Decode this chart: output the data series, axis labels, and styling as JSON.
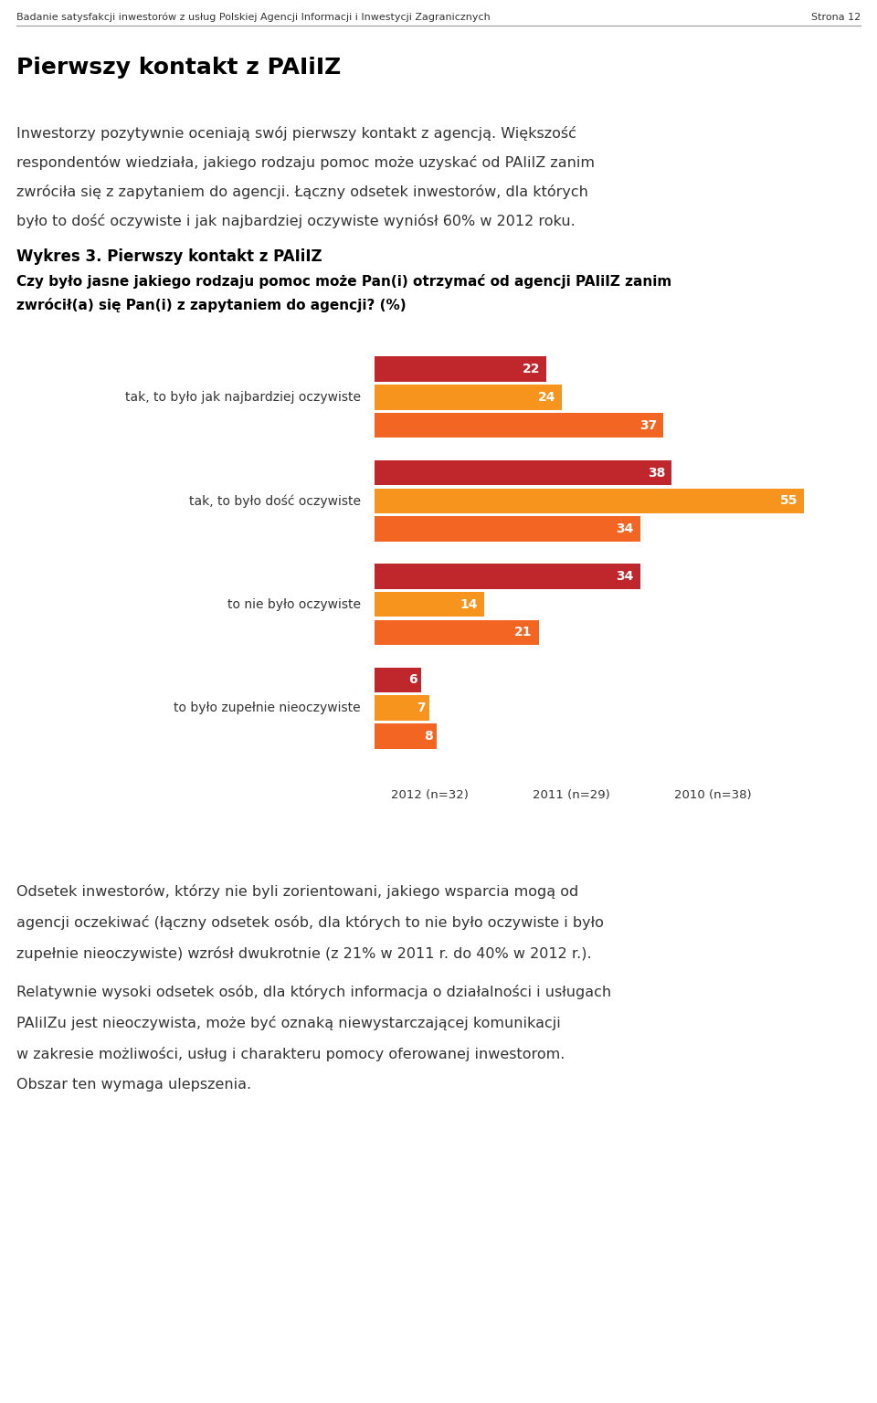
{
  "page_header": "Badanie satysfakcji inwestorów z usług Polskiej Agencji Informacji i Inwestycji Zagranicznych",
  "page_number": "Strona 12",
  "section_title": "Pierwszy kontakt z PAIiIZ",
  "intro_lines": [
    "Inwestorzy pozytywnie oceniają swój pierwszy kontakt z agencją. Większość",
    "respondentów wiedziała, jakiego rodzaju pomoc może uzyskać od PAIiIZ zanim",
    "zwróciła się z zapytaniem do agencji. Łączny odsetek inwestorów, dla których",
    "było to dość oczywiste i jak najbardziej oczywiste wyniósł 60% w 2012 roku."
  ],
  "chart_title": "Wykres 3. Pierwszy kontakt z PAIiIZ",
  "chart_subtitle_lines": [
    "Czy było jasne jakiego rodzaju pomoc może Pan(i) otrzymać od agencji PAIiIZ zanim",
    "zwrócił(a) się Pan(i) z zapytaniem do agencji? (%)"
  ],
  "categories": [
    "tak, to było jak najbardziej oczywiste",
    "tak, to było dość oczywiste",
    "to nie było oczywiste",
    "to było zupełnie nieoczywiste"
  ],
  "series": [
    {
      "label": "2012 (n=32)",
      "color": "#c0272d",
      "values": [
        22,
        38,
        34,
        6
      ]
    },
    {
      "label": "2011 (n=29)",
      "color": "#f7941d",
      "values": [
        24,
        55,
        14,
        7
      ]
    },
    {
      "label": "2010 (n=38)",
      "color": "#f26522",
      "values": [
        37,
        34,
        21,
        8
      ]
    }
  ],
  "footer_lines_1": [
    "Odsetek inwestorów, którzy nie byli zorientowani, jakiego wsparcia mogą od",
    "agencji oczekiwać (łączny odsetek osób, dla których to nie było oczywiste i było",
    "zupełnie nieoczywiste) wzrósł dwukrotnie (z 21% w 2011 r. do 40% w 2012 r.)."
  ],
  "footer_lines_2": [
    "Relatywnie wysoki odsetek osób, dla których informacja o działalności i usługach",
    "PAIiIZu jest nieoczywista, może być oznaką niewystarczającej komunikacji",
    "w zakresie możliwości, usług i charakteru pomocy oferowanej inwestorom.",
    "Obszar ten wymaga ulepszenia."
  ],
  "tns_color": "#e5007d",
  "background_color": "#ffffff"
}
